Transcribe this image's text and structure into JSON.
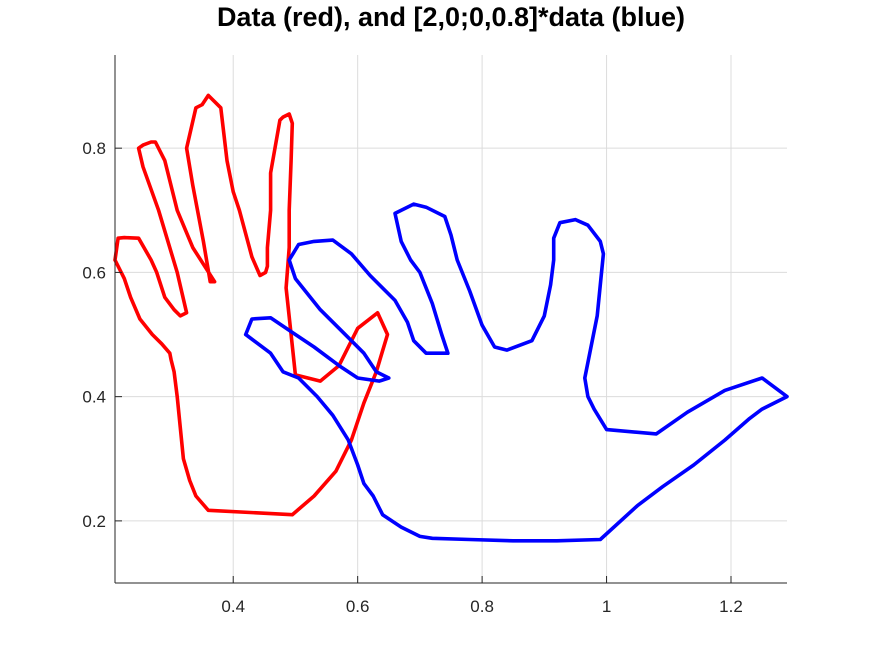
{
  "chart_data": {
    "type": "line",
    "title": "Data (red), and [2,0;0,0.8]*data (blue)",
    "xlabel": "",
    "ylabel": "",
    "xlim": [
      0.21,
      1.29
    ],
    "ylim": [
      0.1,
      0.95
    ],
    "xticks": [
      0.4,
      0.6,
      0.8,
      1,
      1.2
    ],
    "yticks": [
      0.2,
      0.4,
      0.6,
      0.8
    ],
    "xtick_labels": [
      "0.4",
      "0.6",
      "0.8",
      "1",
      "1.2"
    ],
    "ytick_labels": [
      "0.2",
      "0.4",
      "0.6",
      "0.8"
    ],
    "grid": true,
    "legend": "none",
    "series": [
      {
        "color": "#ff0000",
        "x": [
          0.21,
          0.215,
          0.225,
          0.248,
          0.268,
          0.277,
          0.29,
          0.305,
          0.315,
          0.325,
          0.31,
          0.28,
          0.255,
          0.248,
          0.255,
          0.268,
          0.275,
          0.29,
          0.31,
          0.335,
          0.37,
          0.363,
          0.352,
          0.335,
          0.325,
          0.34,
          0.35,
          0.36,
          0.38,
          0.39,
          0.4,
          0.41,
          0.43,
          0.443,
          0.452,
          0.455,
          0.455,
          0.46,
          0.46,
          0.475,
          0.48,
          0.49,
          0.495,
          0.493,
          0.49,
          0.49,
          0.485,
          0.493,
          0.5,
          0.52,
          0.54,
          0.57,
          0.6,
          0.632,
          0.648,
          0.63,
          0.61,
          0.59,
          0.565,
          0.53,
          0.495,
          0.36,
          0.34,
          0.33,
          0.32,
          0.315,
          0.31,
          0.305,
          0.3,
          0.298,
          0.285,
          0.27,
          0.25,
          0.235,
          0.225,
          0.21
        ],
        "y": [
          0.62,
          0.655,
          0.656,
          0.655,
          0.62,
          0.6,
          0.56,
          0.54,
          0.53,
          0.535,
          0.6,
          0.7,
          0.77,
          0.8,
          0.805,
          0.81,
          0.81,
          0.78,
          0.7,
          0.64,
          0.585,
          0.585,
          0.65,
          0.74,
          0.8,
          0.865,
          0.87,
          0.885,
          0.865,
          0.78,
          0.73,
          0.7,
          0.625,
          0.595,
          0.6,
          0.61,
          0.64,
          0.7,
          0.76,
          0.845,
          0.85,
          0.855,
          0.84,
          0.78,
          0.7,
          0.64,
          0.575,
          0.5,
          0.435,
          0.43,
          0.425,
          0.45,
          0.51,
          0.535,
          0.5,
          0.44,
          0.39,
          0.33,
          0.28,
          0.24,
          0.21,
          0.217,
          0.24,
          0.265,
          0.3,
          0.35,
          0.4,
          0.44,
          0.46,
          0.47,
          0.485,
          0.5,
          0.525,
          0.56,
          0.59,
          0.62
        ]
      },
      {
        "color": "#0000ff",
        "x": [
          0.42,
          0.43,
          0.46,
          0.5,
          0.53,
          0.57,
          0.6,
          0.635,
          0.65,
          0.63,
          0.61,
          0.57,
          0.54,
          0.5,
          0.49,
          0.505,
          0.53,
          0.56,
          0.59,
          0.62,
          0.66,
          0.68,
          0.69,
          0.71,
          0.72,
          0.73,
          0.745,
          0.735,
          0.72,
          0.7,
          0.685,
          0.67,
          0.66,
          0.69,
          0.71,
          0.74,
          0.75,
          0.76,
          0.78,
          0.8,
          0.82,
          0.84,
          0.88,
          0.9,
          0.91,
          0.915,
          0.915,
          0.925,
          0.95,
          0.97,
          0.99,
          0.995,
          0.99,
          0.985,
          0.97,
          0.965,
          0.97,
          0.98,
          1,
          1.08,
          1.13,
          1.19,
          1.25,
          1.29,
          1.25,
          1.23,
          1.19,
          1.14,
          1.09,
          1.05,
          0.99,
          0.92,
          0.85,
          0.78,
          0.72,
          0.7,
          0.67,
          0.64,
          0.625,
          0.61,
          0.6,
          0.585,
          0.56,
          0.535,
          0.505,
          0.48,
          0.46,
          0.44,
          0.42
        ],
        "y": [
          0.5,
          0.525,
          0.527,
          0.5,
          0.48,
          0.45,
          0.43,
          0.425,
          0.43,
          0.44,
          0.47,
          0.51,
          0.54,
          0.59,
          0.62,
          0.645,
          0.65,
          0.652,
          0.63,
          0.595,
          0.555,
          0.52,
          0.49,
          0.47,
          0.47,
          0.47,
          0.47,
          0.5,
          0.55,
          0.6,
          0.62,
          0.65,
          0.695,
          0.71,
          0.705,
          0.69,
          0.66,
          0.62,
          0.57,
          0.515,
          0.48,
          0.475,
          0.49,
          0.53,
          0.58,
          0.62,
          0.655,
          0.68,
          0.685,
          0.676,
          0.65,
          0.63,
          0.58,
          0.53,
          0.455,
          0.43,
          0.4,
          0.38,
          0.347,
          0.34,
          0.375,
          0.41,
          0.43,
          0.4,
          0.38,
          0.365,
          0.33,
          0.29,
          0.255,
          0.225,
          0.17,
          0.168,
          0.168,
          0.17,
          0.172,
          0.175,
          0.19,
          0.21,
          0.24,
          0.26,
          0.29,
          0.33,
          0.37,
          0.4,
          0.43,
          0.44,
          0.47,
          0.485,
          0.5
        ]
      }
    ]
  }
}
